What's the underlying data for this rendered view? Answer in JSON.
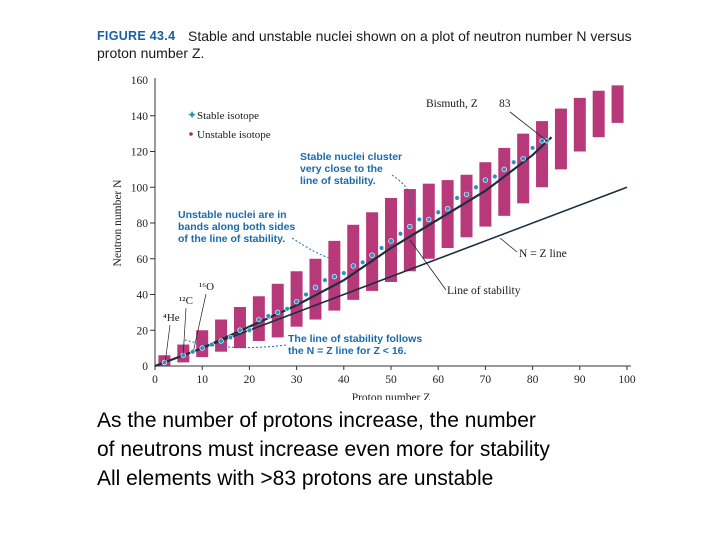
{
  "figure": {
    "label": "FIGURE 43.4",
    "caption_line1": "Stable and unstable nuclei shown on a plot of neutron number N versus",
    "caption_line2": "proton number Z."
  },
  "chart_data": {
    "type": "scatter",
    "xlabel": "Proton number Z",
    "ylabel": "Neutron number N",
    "xlim": [
      0,
      100
    ],
    "ylim": [
      0,
      160
    ],
    "x_ticks": [
      0,
      10,
      20,
      30,
      40,
      50,
      60,
      70,
      80,
      90,
      100
    ],
    "y_ticks": [
      0,
      20,
      40,
      60,
      80,
      100,
      120,
      140,
      160
    ],
    "legend": [
      "Stable isotope",
      "Unstable isotope"
    ],
    "legend_position": "top-left",
    "series": [
      {
        "name": "Unstable isotope",
        "kind": "bands",
        "bands": [
          {
            "z": 2,
            "n_min": 0,
            "n_max": 6
          },
          {
            "z": 6,
            "n_min": 2,
            "n_max": 12
          },
          {
            "z": 10,
            "n_min": 5,
            "n_max": 20
          },
          {
            "z": 14,
            "n_min": 8,
            "n_max": 26
          },
          {
            "z": 18,
            "n_min": 10,
            "n_max": 33
          },
          {
            "z": 22,
            "n_min": 14,
            "n_max": 39
          },
          {
            "z": 26,
            "n_min": 16,
            "n_max": 46
          },
          {
            "z": 30,
            "n_min": 22,
            "n_max": 53
          },
          {
            "z": 34,
            "n_min": 26,
            "n_max": 60
          },
          {
            "z": 38,
            "n_min": 31,
            "n_max": 70
          },
          {
            "z": 42,
            "n_min": 37,
            "n_max": 79
          },
          {
            "z": 46,
            "n_min": 42,
            "n_max": 86
          },
          {
            "z": 50,
            "n_min": 47,
            "n_max": 94
          },
          {
            "z": 54,
            "n_min": 53,
            "n_max": 99
          },
          {
            "z": 58,
            "n_min": 60,
            "n_max": 102
          },
          {
            "z": 62,
            "n_min": 66,
            "n_max": 104
          },
          {
            "z": 66,
            "n_min": 72,
            "n_max": 107
          },
          {
            "z": 70,
            "n_min": 78,
            "n_max": 114
          },
          {
            "z": 74,
            "n_min": 84,
            "n_max": 122
          },
          {
            "z": 78,
            "n_min": 91,
            "n_max": 130
          },
          {
            "z": 82,
            "n_min": 100,
            "n_max": 137
          },
          {
            "z": 86,
            "n_min": 110,
            "n_max": 144
          },
          {
            "z": 90,
            "n_min": 120,
            "n_max": 150
          },
          {
            "z": 94,
            "n_min": 128,
            "n_max": 154
          },
          {
            "z": 98,
            "n_min": 136,
            "n_max": 157
          }
        ]
      },
      {
        "name": "Stable isotope",
        "kind": "points",
        "points": [
          [
            2,
            2
          ],
          [
            6,
            6
          ],
          [
            8,
            8
          ],
          [
            10,
            10
          ],
          [
            12,
            12
          ],
          [
            14,
            14
          ],
          [
            16,
            16
          ],
          [
            18,
            20
          ],
          [
            20,
            20
          ],
          [
            22,
            26
          ],
          [
            24,
            28
          ],
          [
            26,
            30
          ],
          [
            28,
            32
          ],
          [
            30,
            36
          ],
          [
            32,
            40
          ],
          [
            34,
            44
          ],
          [
            36,
            48
          ],
          [
            38,
            50
          ],
          [
            40,
            52
          ],
          [
            42,
            56
          ],
          [
            44,
            58
          ],
          [
            46,
            62
          ],
          [
            48,
            66
          ],
          [
            50,
            70
          ],
          [
            52,
            74
          ],
          [
            54,
            78
          ],
          [
            56,
            82
          ],
          [
            58,
            82
          ],
          [
            60,
            86
          ],
          [
            62,
            88
          ],
          [
            64,
            94
          ],
          [
            66,
            96
          ],
          [
            68,
            100
          ],
          [
            70,
            104
          ],
          [
            72,
            106
          ],
          [
            74,
            110
          ],
          [
            76,
            114
          ],
          [
            78,
            116
          ],
          [
            80,
            122
          ],
          [
            82,
            126
          ],
          [
            83,
            126
          ]
        ]
      },
      {
        "name": "Line of stability",
        "kind": "line",
        "points": [
          [
            0,
            0
          ],
          [
            10,
            10
          ],
          [
            20,
            22
          ],
          [
            30,
            34
          ],
          [
            40,
            48
          ],
          [
            50,
            66
          ],
          [
            60,
            82
          ],
          [
            70,
            98
          ],
          [
            80,
            118
          ],
          [
            84,
            128
          ]
        ]
      },
      {
        "name": "N = Z line",
        "kind": "line",
        "points": [
          [
            0,
            0
          ],
          [
            100,
            100
          ]
        ]
      }
    ],
    "annotations": {
      "bismuth": "Bismuth, Z",
      "bismuth_z": "83",
      "cluster": [
        "Stable nuclei cluster",
        "very close to the",
        "line of stability."
      ],
      "unstable": [
        "Unstable nuclei are in",
        "bands along both sides",
        "of the line of stability."
      ],
      "nz_line": "N = Z line",
      "stability_line": "Line of stability",
      "follows": [
        "The line of stability follows",
        "the N = Z line for Z < 16."
      ],
      "he": "⁴He",
      "c": "¹²C",
      "o": "¹⁶O"
    }
  },
  "colors": {
    "caption_label": "#1a5fa5",
    "stable": "#2d8fc7",
    "unstable": "#b0246a",
    "line": "#1c2f40",
    "annotation_blue": "#1a6aae"
  },
  "bottom_text": [
    "As the number of protons increase, the number",
    "of neutrons must increase even more for stability",
    "All elements with >83 protons are unstable"
  ]
}
